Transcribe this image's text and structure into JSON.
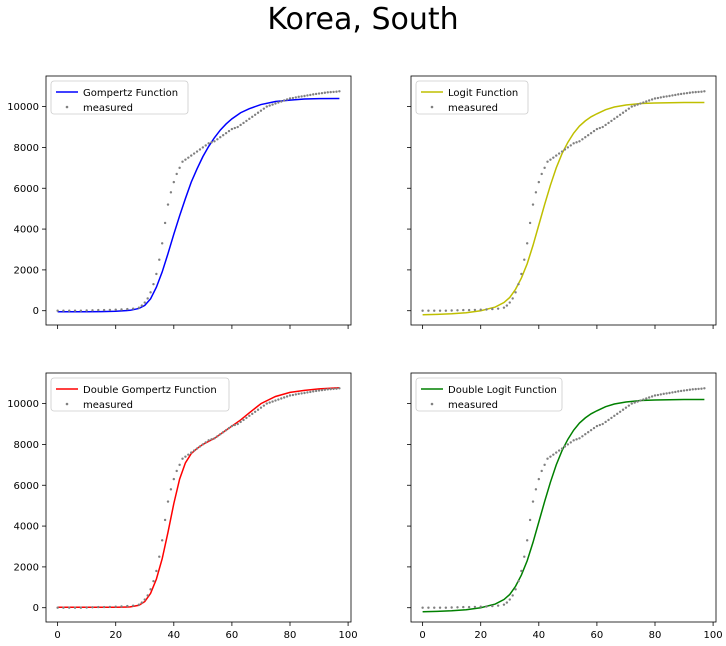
{
  "figure": {
    "title": "Korea, South"
  },
  "chart_data": [
    {
      "type": "line",
      "id": "gompertz",
      "title": "",
      "xlabel": "",
      "ylabel": "",
      "xlim": [
        -4,
        101
      ],
      "ylim": [
        -700,
        11500
      ],
      "xticks": [
        0,
        20,
        40,
        60,
        80,
        100
      ],
      "yticks": [
        0,
        2000,
        4000,
        6000,
        8000,
        10000
      ],
      "show_xtick_labels": false,
      "show_ytick_labels": true,
      "grid": false,
      "legend": "top-left",
      "series": [
        {
          "name": "Gompertz Function",
          "kind": "line",
          "color": "#0000ff",
          "x": [
            0,
            5,
            10,
            15,
            20,
            25,
            28,
            30,
            32,
            34,
            36,
            38,
            40,
            42,
            44,
            46,
            48,
            50,
            52,
            54,
            56,
            58,
            60,
            63,
            66,
            70,
            75,
            80,
            85,
            90,
            97
          ],
          "y": [
            -50,
            -50,
            -50,
            -45,
            -25,
            20,
            110,
            260,
            580,
            1150,
            1900,
            2800,
            3750,
            4650,
            5500,
            6300,
            6950,
            7550,
            8050,
            8480,
            8850,
            9150,
            9400,
            9700,
            9900,
            10100,
            10250,
            10320,
            10370,
            10390,
            10400
          ]
        },
        {
          "name": "measured",
          "kind": "scatter",
          "color": "#808080",
          "x": [
            0,
            2,
            4,
            6,
            8,
            10,
            12,
            14,
            16,
            18,
            20,
            22,
            24,
            26,
            28,
            29,
            30,
            31,
            32,
            33,
            34,
            35,
            36,
            37,
            38,
            39,
            40,
            41,
            42,
            43,
            44,
            45,
            46,
            47,
            48,
            49,
            50,
            51,
            52,
            53,
            54,
            55,
            56,
            57,
            58,
            59,
            60,
            61,
            62,
            63,
            64,
            65,
            66,
            67,
            68,
            69,
            70,
            71,
            72,
            73,
            74,
            75,
            76,
            77,
            78,
            79,
            80,
            81,
            82,
            83,
            84,
            85,
            86,
            87,
            88,
            89,
            90,
            91,
            92,
            93,
            94,
            95,
            96,
            97
          ],
          "y": [
            0,
            0,
            0,
            0,
            0,
            10,
            20,
            30,
            30,
            40,
            50,
            60,
            80,
            100,
            150,
            250,
            400,
            600,
            900,
            1300,
            1800,
            2500,
            3300,
            4300,
            5200,
            5800,
            6300,
            6700,
            7000,
            7300,
            7400,
            7500,
            7600,
            7700,
            7800,
            7900,
            8000,
            8100,
            8200,
            8250,
            8300,
            8400,
            8500,
            8600,
            8700,
            8800,
            8900,
            8950,
            9000,
            9100,
            9200,
            9300,
            9400,
            9500,
            9600,
            9700,
            9800,
            9900,
            10000,
            10050,
            10100,
            10150,
            10200,
            10250,
            10300,
            10350,
            10400,
            10420,
            10450,
            10480,
            10500,
            10520,
            10550,
            10570,
            10600,
            10620,
            10640,
            10660,
            10680,
            10700,
            10710,
            10720,
            10730,
            10750
          ]
        }
      ]
    },
    {
      "type": "line",
      "id": "logit",
      "title": "",
      "xlabel": "",
      "ylabel": "",
      "xlim": [
        -4,
        101
      ],
      "ylim": [
        -700,
        11500
      ],
      "xticks": [
        0,
        20,
        40,
        60,
        80,
        100
      ],
      "yticks": [
        0,
        2000,
        4000,
        6000,
        8000,
        10000
      ],
      "show_xtick_labels": false,
      "show_ytick_labels": false,
      "grid": false,
      "legend": "top-left",
      "series": [
        {
          "name": "Logit Function",
          "kind": "line",
          "color": "#bfbf00",
          "x": [
            0,
            5,
            10,
            15,
            20,
            25,
            28,
            30,
            32,
            34,
            36,
            38,
            40,
            42,
            44,
            46,
            48,
            50,
            52,
            54,
            56,
            58,
            60,
            63,
            66,
            70,
            75,
            80,
            85,
            90,
            97
          ],
          "y": [
            -200,
            -180,
            -150,
            -100,
            0,
            180,
            400,
            650,
            1050,
            1600,
            2300,
            3200,
            4200,
            5200,
            6150,
            7000,
            7700,
            8250,
            8700,
            9050,
            9300,
            9500,
            9650,
            9850,
            9980,
            10080,
            10150,
            10180,
            10190,
            10200,
            10200
          ]
        },
        {
          "name": "measured",
          "kind": "scatter",
          "color": "#808080",
          "x": [
            0,
            2,
            4,
            6,
            8,
            10,
            12,
            14,
            16,
            18,
            20,
            22,
            24,
            26,
            28,
            29,
            30,
            31,
            32,
            33,
            34,
            35,
            36,
            37,
            38,
            39,
            40,
            41,
            42,
            43,
            44,
            45,
            46,
            47,
            48,
            49,
            50,
            51,
            52,
            53,
            54,
            55,
            56,
            57,
            58,
            59,
            60,
            61,
            62,
            63,
            64,
            65,
            66,
            67,
            68,
            69,
            70,
            71,
            72,
            73,
            74,
            75,
            76,
            77,
            78,
            79,
            80,
            81,
            82,
            83,
            84,
            85,
            86,
            87,
            88,
            89,
            90,
            91,
            92,
            93,
            94,
            95,
            96,
            97
          ],
          "y": [
            0,
            0,
            0,
            0,
            0,
            10,
            20,
            30,
            30,
            40,
            50,
            60,
            80,
            100,
            150,
            250,
            400,
            600,
            900,
            1300,
            1800,
            2500,
            3300,
            4300,
            5200,
            5800,
            6300,
            6700,
            7000,
            7300,
            7400,
            7500,
            7600,
            7700,
            7800,
            7900,
            8000,
            8100,
            8200,
            8250,
            8300,
            8400,
            8500,
            8600,
            8700,
            8800,
            8900,
            8950,
            9000,
            9100,
            9200,
            9300,
            9400,
            9500,
            9600,
            9700,
            9800,
            9900,
            10000,
            10050,
            10100,
            10150,
            10200,
            10250,
            10300,
            10350,
            10400,
            10420,
            10450,
            10480,
            10500,
            10520,
            10550,
            10570,
            10600,
            10620,
            10640,
            10660,
            10680,
            10700,
            10710,
            10720,
            10730,
            10750
          ]
        }
      ]
    },
    {
      "type": "line",
      "id": "double-gompertz",
      "title": "",
      "xlabel": "",
      "ylabel": "",
      "xlim": [
        -4,
        101
      ],
      "ylim": [
        -700,
        11500
      ],
      "xticks": [
        0,
        20,
        40,
        60,
        80,
        100
      ],
      "yticks": [
        0,
        2000,
        4000,
        6000,
        8000,
        10000
      ],
      "show_xtick_labels": true,
      "show_ytick_labels": true,
      "grid": false,
      "legend": "top-left",
      "series": [
        {
          "name": "Double Gompertz Function",
          "kind": "line",
          "color": "#ff0000",
          "x": [
            0,
            5,
            10,
            15,
            20,
            25,
            28,
            30,
            32,
            34,
            36,
            38,
            40,
            42,
            44,
            46,
            48,
            50,
            52,
            54,
            56,
            58,
            60,
            63,
            66,
            70,
            75,
            80,
            85,
            90,
            97
          ],
          "y": [
            20,
            20,
            20,
            20,
            25,
            40,
            120,
            300,
            700,
            1400,
            2400,
            3700,
            5100,
            6300,
            7100,
            7550,
            7800,
            8000,
            8150,
            8300,
            8500,
            8700,
            8900,
            9200,
            9550,
            10000,
            10350,
            10550,
            10650,
            10720,
            10780
          ]
        },
        {
          "name": "measured",
          "kind": "scatter",
          "color": "#808080",
          "x": [
            0,
            2,
            4,
            6,
            8,
            10,
            12,
            14,
            16,
            18,
            20,
            22,
            24,
            26,
            28,
            29,
            30,
            31,
            32,
            33,
            34,
            35,
            36,
            37,
            38,
            39,
            40,
            41,
            42,
            43,
            44,
            45,
            46,
            47,
            48,
            49,
            50,
            51,
            52,
            53,
            54,
            55,
            56,
            57,
            58,
            59,
            60,
            61,
            62,
            63,
            64,
            65,
            66,
            67,
            68,
            69,
            70,
            71,
            72,
            73,
            74,
            75,
            76,
            77,
            78,
            79,
            80,
            81,
            82,
            83,
            84,
            85,
            86,
            87,
            88,
            89,
            90,
            91,
            92,
            93,
            94,
            95,
            96,
            97
          ],
          "y": [
            0,
            0,
            0,
            0,
            0,
            10,
            20,
            30,
            30,
            40,
            50,
            60,
            80,
            100,
            150,
            250,
            400,
            600,
            900,
            1300,
            1800,
            2500,
            3300,
            4300,
            5200,
            5800,
            6300,
            6700,
            7000,
            7300,
            7400,
            7500,
            7600,
            7700,
            7800,
            7900,
            8000,
            8100,
            8200,
            8250,
            8300,
            8400,
            8500,
            8600,
            8700,
            8800,
            8900,
            8950,
            9000,
            9100,
            9200,
            9300,
            9400,
            9500,
            9600,
            9700,
            9800,
            9900,
            10000,
            10050,
            10100,
            10150,
            10200,
            10250,
            10300,
            10350,
            10400,
            10420,
            10450,
            10480,
            10500,
            10520,
            10550,
            10570,
            10600,
            10620,
            10640,
            10660,
            10680,
            10700,
            10710,
            10720,
            10730,
            10750
          ]
        }
      ]
    },
    {
      "type": "line",
      "id": "double-logit",
      "title": "",
      "xlabel": "",
      "ylabel": "",
      "xlim": [
        -4,
        101
      ],
      "ylim": [
        -700,
        11500
      ],
      "xticks": [
        0,
        20,
        40,
        60,
        80,
        100
      ],
      "yticks": [
        0,
        2000,
        4000,
        6000,
        8000,
        10000
      ],
      "show_xtick_labels": true,
      "show_ytick_labels": false,
      "grid": false,
      "legend": "top-left",
      "series": [
        {
          "name": "Double Logit Function",
          "kind": "line",
          "color": "#008000",
          "x": [
            0,
            5,
            10,
            15,
            20,
            25,
            28,
            30,
            32,
            34,
            36,
            38,
            40,
            42,
            44,
            46,
            48,
            50,
            52,
            54,
            56,
            58,
            60,
            63,
            66,
            70,
            75,
            80,
            85,
            90,
            97
          ],
          "y": [
            -200,
            -180,
            -150,
            -100,
            0,
            180,
            400,
            650,
            1050,
            1600,
            2300,
            3200,
            4200,
            5200,
            6150,
            7000,
            7700,
            8250,
            8700,
            9050,
            9300,
            9500,
            9650,
            9850,
            9980,
            10080,
            10150,
            10180,
            10190,
            10200,
            10200
          ]
        },
        {
          "name": "measured",
          "kind": "scatter",
          "color": "#808080",
          "x": [
            0,
            2,
            4,
            6,
            8,
            10,
            12,
            14,
            16,
            18,
            20,
            22,
            24,
            26,
            28,
            29,
            30,
            31,
            32,
            33,
            34,
            35,
            36,
            37,
            38,
            39,
            40,
            41,
            42,
            43,
            44,
            45,
            46,
            47,
            48,
            49,
            50,
            51,
            52,
            53,
            54,
            55,
            56,
            57,
            58,
            59,
            60,
            61,
            62,
            63,
            64,
            65,
            66,
            67,
            68,
            69,
            70,
            71,
            72,
            73,
            74,
            75,
            76,
            77,
            78,
            79,
            80,
            81,
            82,
            83,
            84,
            85,
            86,
            87,
            88,
            89,
            90,
            91,
            92,
            93,
            94,
            95,
            96,
            97
          ],
          "y": [
            0,
            0,
            0,
            0,
            0,
            10,
            20,
            30,
            30,
            40,
            50,
            60,
            80,
            100,
            150,
            250,
            400,
            600,
            900,
            1300,
            1800,
            2500,
            3300,
            4300,
            5200,
            5800,
            6300,
            6700,
            7000,
            7300,
            7400,
            7500,
            7600,
            7700,
            7800,
            7900,
            8000,
            8100,
            8200,
            8250,
            8300,
            8400,
            8500,
            8600,
            8700,
            8800,
            8900,
            8950,
            9000,
            9100,
            9200,
            9300,
            9400,
            9500,
            9600,
            9700,
            9800,
            9900,
            10000,
            10050,
            10100,
            10150,
            10200,
            10250,
            10300,
            10350,
            10400,
            10420,
            10450,
            10480,
            10500,
            10520,
            10550,
            10570,
            10600,
            10620,
            10640,
            10660,
            10680,
            10700,
            10710,
            10720,
            10730,
            10750
          ]
        }
      ]
    }
  ]
}
